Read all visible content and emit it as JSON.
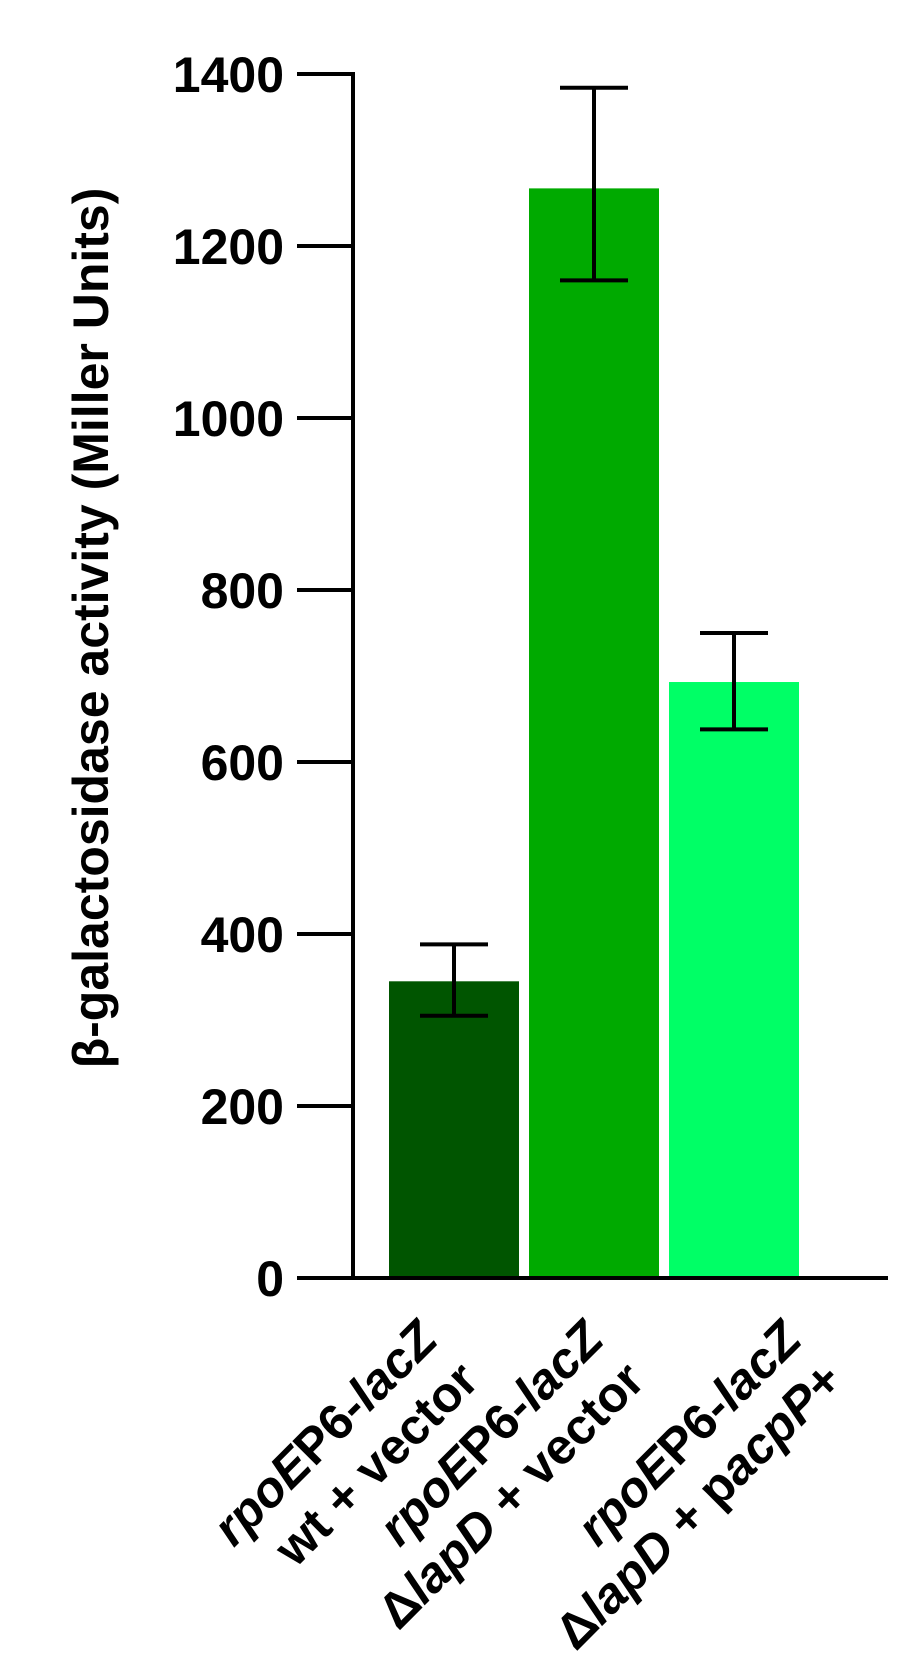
{
  "chart_data": {
    "type": "bar",
    "ylabel": "β-galactosidase activity (Miller Units)",
    "ylim": [
      0,
      1400
    ],
    "yticks": [
      "0",
      "200",
      "400",
      "600",
      "800",
      "1000",
      "1200",
      "1400"
    ],
    "categories": [
      {
        "line1": [
          {
            "text": "rpoE",
            "italic": true
          },
          {
            "text": "P6-",
            "italic": false
          },
          {
            "text": "lacZ",
            "italic": true
          }
        ],
        "line2": [
          {
            "text": "wt + vector",
            "italic": false
          }
        ]
      },
      {
        "line1": [
          {
            "text": "rpoE",
            "italic": true
          },
          {
            "text": "P6-",
            "italic": false
          },
          {
            "text": "lacZ",
            "italic": true
          }
        ],
        "line2": [
          {
            "text": "Δ",
            "italic": false
          },
          {
            "text": "lapD",
            "italic": true
          },
          {
            "text": " + vector",
            "italic": false
          }
        ]
      },
      {
        "line1": [
          {
            "text": "rpoE",
            "italic": true
          },
          {
            "text": "P6-",
            "italic": false
          },
          {
            "text": "lacZ",
            "italic": true
          }
        ],
        "line2": [
          {
            "text": "Δ",
            "italic": false
          },
          {
            "text": "lapD",
            "italic": true
          },
          {
            "text": " + p",
            "italic": false
          },
          {
            "text": "acpP",
            "italic": true
          },
          {
            "text": "+",
            "italic": false
          }
        ]
      }
    ],
    "values": [
      345,
      1267,
      693
    ],
    "error_low": [
      305,
      1160,
      638
    ],
    "error_high": [
      388,
      1384,
      750
    ],
    "colors": [
      "#005500",
      "#00aa00",
      "#00ff66"
    ],
    "grid": false,
    "legend": "none"
  }
}
